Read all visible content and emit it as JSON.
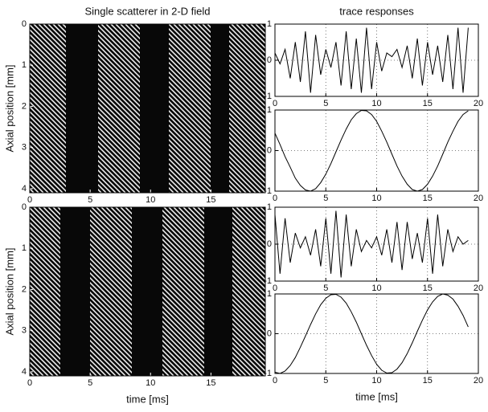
{
  "chart_data": [
    {
      "type": "image",
      "title": "Single scatterer in 2-D field",
      "ylabel": "Axial position [mm]",
      "xlim": [
        0,
        19.5
      ],
      "ylim": [
        0,
        4.1
      ],
      "y_reversed": true,
      "xticks": [
        0,
        5,
        10,
        15
      ],
      "yticks": [
        0,
        1,
        2,
        3,
        4
      ]
    },
    {
      "type": "line",
      "title": "trace responses",
      "xlim": [
        0,
        20
      ],
      "ylim": [
        -1,
        1
      ],
      "xticks": [
        0,
        5,
        10,
        15,
        20
      ],
      "yticks": [
        -1,
        0,
        1
      ],
      "grid": true,
      "color": "#000000",
      "x": [
        0,
        0.5,
        1,
        1.5,
        2,
        2.5,
        3,
        3.5,
        4,
        4.5,
        5,
        5.5,
        6,
        6.5,
        7,
        7.5,
        8,
        8.5,
        9,
        9.5,
        10,
        10.5,
        11,
        11.5,
        12,
        12.5,
        13,
        13.5,
        14,
        14.5,
        15,
        15.5,
        16,
        16.5,
        17,
        17.5,
        18,
        18.5,
        19
      ],
      "values": [
        0.2,
        -0.1,
        0.3,
        -0.5,
        0.5,
        -0.6,
        0.8,
        -0.9,
        0.7,
        -0.4,
        0.3,
        -0.2,
        0.5,
        -0.7,
        0.8,
        -0.8,
        0.6,
        -0.9,
        0.9,
        -0.8,
        0.5,
        -0.3,
        0.2,
        0.1,
        0.3,
        -0.2,
        0.4,
        -0.5,
        0.6,
        -0.7,
        0.5,
        -0.4,
        0.4,
        -0.6,
        0.7,
        -0.8,
        0.9,
        -0.9,
        0.9
      ]
    },
    {
      "type": "line",
      "xlim": [
        0,
        20
      ],
      "ylim": [
        -1,
        1
      ],
      "xticks": [
        0,
        5,
        10,
        15,
        20
      ],
      "yticks": [
        -1,
        0,
        1
      ],
      "grid": true,
      "color": "#000000",
      "x": [
        0,
        0.5,
        1,
        1.5,
        2,
        2.5,
        3,
        3.5,
        4,
        4.5,
        5,
        5.5,
        6,
        6.5,
        7,
        7.5,
        8,
        8.5,
        9,
        9.5,
        10,
        10.5,
        11,
        11.5,
        12,
        12.5,
        13,
        13.5,
        14,
        14.5,
        15,
        15.5,
        16,
        16.5,
        17,
        17.5,
        18,
        18.5,
        19
      ],
      "values": [
        0.43,
        0.15,
        -0.15,
        -0.41,
        -0.68,
        -0.86,
        -0.97,
        -1.0,
        -0.94,
        -0.79,
        -0.58,
        -0.32,
        -0.03,
        0.26,
        0.53,
        0.76,
        0.91,
        0.99,
        0.98,
        0.89,
        0.72,
        0.48,
        0.21,
        -0.09,
        -0.38,
        -0.63,
        -0.83,
        -0.96,
        -1.0,
        -0.96,
        -0.83,
        -0.63,
        -0.38,
        -0.09,
        0.21,
        0.48,
        0.72,
        0.89,
        0.98
      ]
    },
    {
      "type": "image",
      "ylabel": "Axial position [mm]",
      "xlabel": "time [ms]",
      "xlim": [
        0,
        19.5
      ],
      "ylim": [
        0,
        4.1
      ],
      "y_reversed": true,
      "xticks": [
        0,
        5,
        10,
        15
      ],
      "yticks": [
        0,
        1,
        2,
        3,
        4
      ]
    },
    {
      "type": "line",
      "xlim": [
        0,
        20
      ],
      "ylim": [
        -1,
        1
      ],
      "xticks": [
        0,
        5,
        10,
        15,
        20
      ],
      "yticks": [
        -1,
        0,
        1
      ],
      "grid": true,
      "color": "#000000",
      "x": [
        0,
        0.5,
        1,
        1.5,
        2,
        2.5,
        3,
        3.5,
        4,
        4.5,
        5,
        5.5,
        6,
        6.5,
        7,
        7.5,
        8,
        8.5,
        9,
        9.5,
        10,
        10.5,
        11,
        11.5,
        12,
        12.5,
        13,
        13.5,
        14,
        14.5,
        15,
        15.5,
        16,
        16.5,
        17,
        17.5,
        18,
        18.5,
        19
      ],
      "values": [
        0.8,
        -0.8,
        0.7,
        -0.5,
        0.3,
        -0.1,
        0.2,
        -0.3,
        0.4,
        -0.6,
        0.7,
        -0.8,
        0.9,
        -0.9,
        0.8,
        -0.6,
        0.4,
        -0.2,
        0.1,
        -0.1,
        0.2,
        -0.3,
        0.4,
        -0.5,
        0.6,
        -0.7,
        0.6,
        -0.4,
        0.3,
        -0.5,
        0.7,
        -0.8,
        0.8,
        -0.6,
        0.4,
        -0.2,
        0.2,
        0.0,
        0.1
      ]
    },
    {
      "type": "line",
      "xlabel": "time [ms]",
      "xlim": [
        0,
        20
      ],
      "ylim": [
        -1,
        1
      ],
      "xticks": [
        0,
        5,
        10,
        15,
        20
      ],
      "yticks": [
        -1,
        0,
        1
      ],
      "grid": true,
      "color": "#000000",
      "x": [
        0,
        0.5,
        1,
        1.5,
        2,
        2.5,
        3,
        3.5,
        4,
        4.5,
        5,
        5.5,
        6,
        6.5,
        7,
        7.5,
        8,
        8.5,
        9,
        9.5,
        10,
        10.5,
        11,
        11.5,
        12,
        12.5,
        13,
        13.5,
        14,
        14.5,
        15,
        15.5,
        16,
        16.5,
        17,
        17.5,
        18,
        18.5,
        19
      ],
      "values": [
        -0.97,
        -1.0,
        -0.94,
        -0.8,
        -0.6,
        -0.34,
        -0.06,
        0.23,
        0.5,
        0.73,
        0.89,
        0.98,
        0.99,
        0.92,
        0.77,
        0.55,
        0.29,
        0.0,
        -0.29,
        -0.55,
        -0.77,
        -0.92,
        -0.99,
        -0.98,
        -0.89,
        -0.73,
        -0.5,
        -0.23,
        0.06,
        0.34,
        0.6,
        0.8,
        0.94,
        1.0,
        0.97,
        0.87,
        0.69,
        0.46,
        0.17
      ]
    }
  ]
}
